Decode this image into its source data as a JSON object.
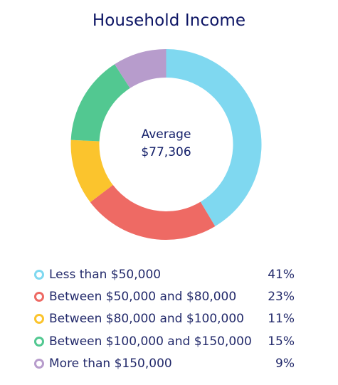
{
  "chart_data": {
    "type": "pie",
    "title": "Household Income",
    "center_label": "Average",
    "center_value": "$77,306",
    "categories": [
      "Less than $50,000",
      "Between $50,000 and $80,000",
      "Between $80,000 and $100,000",
      "Between $100,000 and $150,000",
      "More than $150,000"
    ],
    "values": [
      41,
      23,
      11,
      15,
      9
    ],
    "value_labels": [
      "41%",
      "23%",
      "11%",
      "15%",
      "9%"
    ],
    "colors": [
      "#7fd8f0",
      "#ee6a64",
      "#fbc42d",
      "#52c891",
      "#b79ccc"
    ],
    "legend_position": "bottom"
  }
}
